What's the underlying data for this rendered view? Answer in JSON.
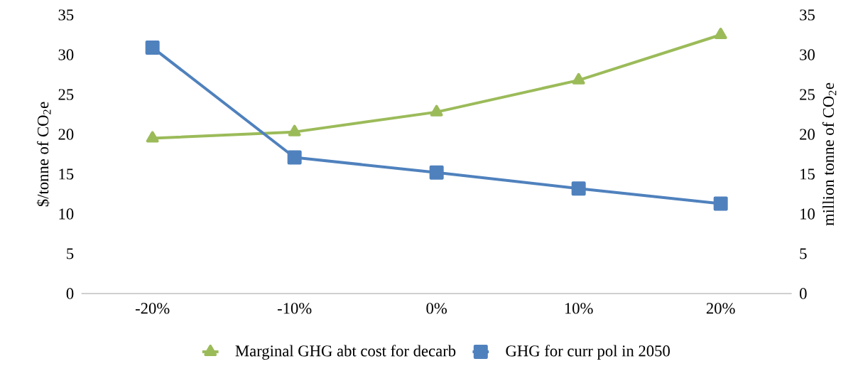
{
  "chart_data": {
    "type": "line",
    "categories": [
      "-20%",
      "-10%",
      "0%",
      "10%",
      "20%"
    ],
    "ylabel": "$/tonne of CO$_{2}$e",
    "y2label": "million tonne of CO$_{2}$e",
    "series": [
      {
        "name": "Marginal GHG abt cost for decarb",
        "color": "#9bbb59",
        "marker": "triangle",
        "values": [
          19.5,
          20.3,
          22.8,
          26.8,
          32.5
        ]
      },
      {
        "name": "GHG for curr pol in 2050",
        "color": "#4f81bd",
        "marker": "square",
        "axis": "y2",
        "values": [
          30.9,
          17.1,
          15.2,
          13.2,
          11.3
        ]
      }
    ],
    "ylim": [
      0,
      35
    ],
    "yticks": [
      0,
      5,
      10,
      15,
      20,
      25,
      30,
      35
    ],
    "y2lim": [
      0,
      35
    ],
    "y2ticks": [
      0,
      5,
      10,
      15,
      20,
      25,
      30,
      35
    ],
    "legend": "bottom",
    "line_style": "solid"
  }
}
